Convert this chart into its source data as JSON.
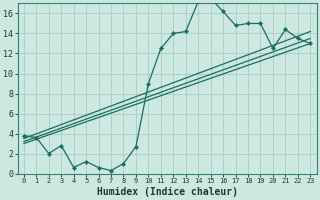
{
  "title": "",
  "xlabel": "Humidex (Indice chaleur)",
  "bg_color": "#cce8e0",
  "grid_color": "#aaccc4",
  "line_color": "#1a6e5e",
  "xlim": [
    -0.5,
    23.5
  ],
  "ylim": [
    0,
    17
  ],
  "xticks": [
    0,
    1,
    2,
    3,
    4,
    5,
    6,
    7,
    8,
    9,
    10,
    11,
    12,
    13,
    14,
    15,
    16,
    17,
    18,
    19,
    20,
    21,
    22,
    23
  ],
  "yticks": [
    0,
    2,
    4,
    6,
    8,
    10,
    12,
    14,
    16
  ],
  "series1_x": [
    0,
    1,
    2,
    3,
    4,
    5,
    6,
    7,
    8,
    9,
    10,
    11,
    12,
    13,
    14,
    15,
    16,
    17,
    18,
    19,
    20,
    21,
    22,
    23
  ],
  "series1_y": [
    3.8,
    3.6,
    2.0,
    2.8,
    0.6,
    1.2,
    0.6,
    0.3,
    1.0,
    2.7,
    9.0,
    12.5,
    14.0,
    14.2,
    17.2,
    17.5,
    16.2,
    14.8,
    15.0,
    15.0,
    12.5,
    14.4,
    13.5,
    13.0
  ],
  "line2_x": [
    0,
    23
  ],
  "line2_y": [
    3.5,
    14.2
  ],
  "line3_x": [
    0,
    23
  ],
  "line3_y": [
    3.2,
    13.5
  ],
  "line4_x": [
    0,
    23
  ],
  "line4_y": [
    3.0,
    13.0
  ]
}
